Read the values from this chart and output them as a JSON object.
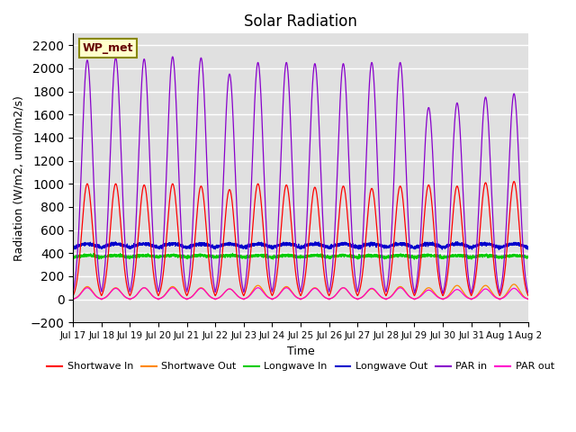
{
  "title": "Solar Radiation",
  "xlabel": "Time",
  "ylabel": "Radiation (W/m2, umol/m2/s)",
  "ylim": [
    -200,
    2300
  ],
  "yticks": [
    -200,
    0,
    200,
    400,
    600,
    800,
    1000,
    1200,
    1400,
    1600,
    1800,
    2000,
    2200
  ],
  "n_days": 16,
  "background_color": "#e0e0e0",
  "grid_color": "white",
  "shortwave_in_color": "#ff0000",
  "shortwave_out_color": "#ff8800",
  "longwave_in_color": "#00cc00",
  "longwave_out_color": "#0000cc",
  "par_in_color": "#8800cc",
  "par_out_color": "#ff00cc",
  "annotation_text": "WP_met",
  "annotation_bg": "#ffffcc",
  "annotation_border": "#888800",
  "sw_in_peaks": [
    1000,
    1000,
    990,
    1000,
    980,
    950,
    1000,
    990,
    970,
    980,
    960,
    980,
    990,
    980,
    1010,
    1020
  ],
  "sw_out_peaks": [
    110,
    100,
    100,
    110,
    100,
    90,
    120,
    110,
    100,
    100,
    90,
    110,
    100,
    120,
    120,
    130
  ],
  "par_in_peaks": [
    2070,
    2090,
    2080,
    2100,
    2090,
    1950,
    2050,
    2050,
    2040,
    2040,
    2050,
    2050,
    1660,
    1700,
    1750,
    1780
  ],
  "par_out_peaks": [
    100,
    95,
    100,
    100,
    95,
    90,
    100,
    100,
    95,
    100,
    95,
    100,
    80,
    85,
    90,
    95
  ],
  "lw_in_base": 350,
  "lw_out_base": 420,
  "lw_in_day_boost": 30,
  "lw_out_day_boost": 60
}
